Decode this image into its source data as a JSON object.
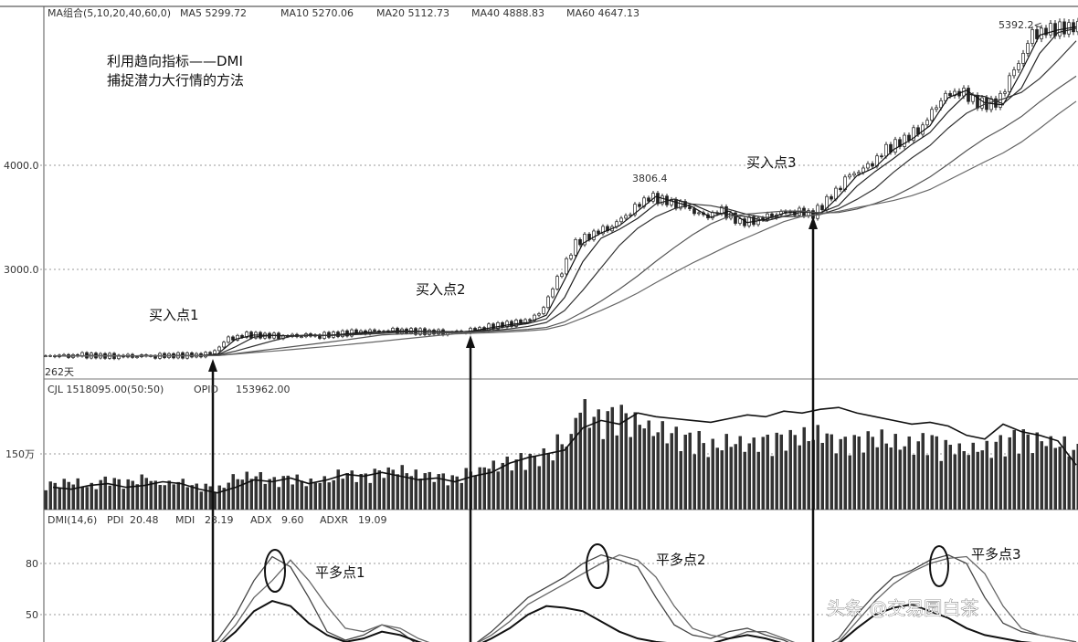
{
  "chart_data": [
    {
      "type": "candlestick-line",
      "panel": "price",
      "header": {
        "indicator": "MA组合(5,10,20,40,60,0)",
        "ma5": "MA5 5299.72",
        "ma10": "MA10 5270.06",
        "ma20": "MA20 5112.73",
        "ma40": "MA40 4888.83",
        "ma60": "MA60 4647.13"
      },
      "title_line1": "利用趋向指标——DMI",
      "title_line2": "捕捉潜力大行情的方法",
      "y_ticks": [
        {
          "value": 4000,
          "label": "4000.0"
        },
        {
          "value": 3000,
          "label": "3000.0"
        }
      ],
      "ylim": [
        2100,
        5420
      ],
      "period_label": "262天",
      "close": [
        2170,
        2165,
        2175,
        2170,
        2168,
        2172,
        2170,
        2175,
        2172,
        2185,
        2330,
        2370,
        2365,
        2360,
        2370,
        2365,
        2380,
        2395,
        2400,
        2410,
        2405,
        2400,
        2395,
        2410,
        2440,
        2470,
        2490,
        2560,
        2900,
        3250,
        3350,
        3420,
        3560,
        3700,
        3650,
        3600,
        3500,
        3560,
        3450,
        3480,
        3540,
        3560,
        3530,
        3700,
        3900,
        3980,
        4150,
        4250,
        4380,
        4650,
        4720,
        4600,
        4580,
        4900,
        5250,
        5300,
        5330
      ],
      "annotations": [
        {
          "text": "买入点1",
          "index": 9
        },
        {
          "text": "买入点2",
          "index": 23
        },
        {
          "text": "买入点3",
          "index": 42
        },
        {
          "text": "3806.4",
          "index": 33,
          "kind": "high"
        },
        {
          "text": "5392.2<",
          "index": 53,
          "kind": "high"
        }
      ]
    },
    {
      "type": "bar-line",
      "panel": "volume",
      "header": {
        "cjl": "CJL  1518095.00(50:50)",
        "opid_label": "OPID",
        "opid_value": "153962.00"
      },
      "y_ticks": [
        {
          "value": 150,
          "label": "150万"
        }
      ],
      "ylim": [
        0,
        300
      ],
      "volume": [
        65,
        70,
        60,
        75,
        70,
        80,
        65,
        70,
        60,
        55,
        80,
        85,
        75,
        80,
        70,
        75,
        90,
        85,
        95,
        100,
        90,
        85,
        80,
        95,
        110,
        120,
        130,
        140,
        170,
        250,
        230,
        240,
        220,
        200,
        190,
        180,
        160,
        170,
        165,
        175,
        180,
        185,
        190,
        170,
        175,
        180,
        170,
        165,
        175,
        160,
        150,
        155,
        170,
        185,
        175,
        165,
        150
      ],
      "opid": [
        60,
        55,
        65,
        70,
        60,
        65,
        75,
        70,
        55,
        45,
        60,
        80,
        75,
        85,
        70,
        80,
        95,
        90,
        100,
        90,
        80,
        85,
        75,
        90,
        100,
        125,
        140,
        150,
        160,
        220,
        240,
        230,
        260,
        250,
        245,
        240,
        235,
        245,
        255,
        250,
        265,
        260,
        270,
        275,
        260,
        250,
        240,
        230,
        235,
        225,
        200,
        190,
        230,
        210,
        200,
        185,
        120
      ]
    },
    {
      "type": "line",
      "panel": "dmi",
      "header": {
        "dmi": "DMI(14,6)",
        "pdi_label": "PDI",
        "pdi": "20.48",
        "mdi_label": "MDI",
        "mdi": "23.19",
        "adx_label": "ADX",
        "adx": "9.60",
        "adxr_label": "ADXR",
        "adxr": "19.09"
      },
      "y_ticks": [
        {
          "value": 80,
          "label": "80"
        },
        {
          "value": 50,
          "label": "50"
        }
      ],
      "ylim": [
        30,
        100
      ],
      "series": [
        {
          "values": [
            30,
            30,
            30,
            30,
            30,
            30,
            30,
            30,
            30,
            35,
            50,
            70,
            84,
            78,
            60,
            40,
            35,
            38,
            44,
            40,
            32,
            30,
            30,
            32,
            40,
            50,
            60,
            66,
            72,
            80,
            85,
            82,
            78,
            60,
            44,
            38,
            36,
            40,
            42,
            38,
            35,
            30,
            30,
            36,
            50,
            62,
            72,
            76,
            82,
            85,
            80,
            60,
            45,
            40,
            38,
            36,
            34
          ]
        },
        {
          "values": [
            30,
            30,
            30,
            30,
            30,
            30,
            30,
            30,
            30,
            32,
            44,
            60,
            70,
            82,
            70,
            55,
            42,
            40,
            44,
            42,
            36,
            32,
            30,
            32,
            38,
            46,
            56,
            62,
            68,
            74,
            80,
            85,
            82,
            72,
            55,
            42,
            38,
            36,
            40,
            40,
            36,
            32,
            30,
            34,
            46,
            58,
            68,
            75,
            80,
            83,
            84,
            74,
            55,
            42,
            38,
            36,
            34
          ]
        },
        {
          "values": [
            30,
            30,
            30,
            30,
            30,
            30,
            30,
            30,
            30,
            31,
            40,
            52,
            58,
            55,
            45,
            38,
            34,
            36,
            40,
            38,
            34,
            31,
            30,
            31,
            36,
            42,
            50,
            55,
            54,
            52,
            46,
            40,
            36,
            34,
            33,
            32,
            33,
            36,
            38,
            36,
            33,
            31,
            30,
            33,
            42,
            50,
            54,
            56,
            52,
            48,
            42,
            38,
            36,
            34,
            33,
            32,
            31
          ]
        }
      ],
      "annotations": [
        {
          "text": "平多点1",
          "index": 12
        },
        {
          "text": "平多点2",
          "index": 30
        },
        {
          "text": "平多点3",
          "index": 49
        }
      ]
    }
  ],
  "watermark": "头条 @交易圆白茶"
}
